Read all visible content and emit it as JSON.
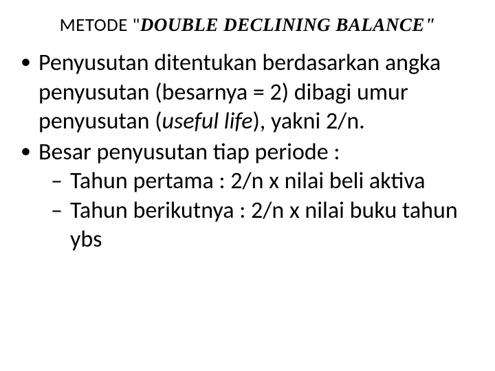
{
  "colors": {
    "background": "#ffffff",
    "text": "#000000"
  },
  "typography": {
    "title_fontsize": 27,
    "body_fontsize": 34,
    "body_line_height": 1.25,
    "title_font": "Calibri",
    "emphasis_font": "Times New Roman"
  },
  "title": {
    "prefix": "METODE \"",
    "emphasis": "DOUBLE DECLINING BALANCE",
    "suffix": "\""
  },
  "bullets": [
    {
      "text_parts": [
        {
          "text": "Penyusutan ditentukan berdasarkan angka penyusutan (besarnya = 2) dibagi umur penyusutan (",
          "italic": false
        },
        {
          "text": "useful life",
          "italic": true
        },
        {
          "text": "), yakni 2/n.",
          "italic": false
        }
      ]
    },
    {
      "text_parts": [
        {
          "text": "Besar penyusutan tiap periode :",
          "italic": false
        }
      ],
      "sub_items": [
        {
          "text": "Tahun pertama : 2/n x nilai beli aktiva"
        },
        {
          "text": "Tahun berikutnya : 2/n x nilai buku tahun ybs",
          "wrap_after": "buku"
        }
      ]
    }
  ]
}
